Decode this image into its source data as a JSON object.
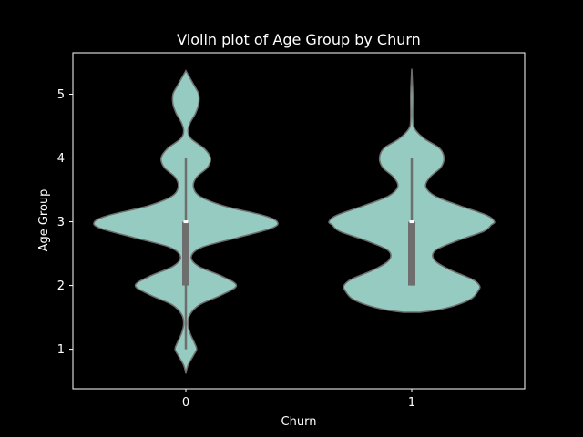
{
  "chart_data": {
    "type": "violin",
    "title": "Violin plot of Age Group by Churn",
    "xlabel": "Churn",
    "ylabel": "Age Group",
    "categories": [
      "0",
      "1"
    ],
    "ylim": [
      0.38,
      5.65
    ],
    "yticks": [
      1,
      2,
      3,
      4,
      5
    ],
    "grid": false,
    "colors": {
      "violin_fill": "#96CBC2",
      "violin_edge": "#6E6E6E",
      "box": "#6E6E6E",
      "median": "#FFFFFF",
      "background": "#000000",
      "axes": "#FFFFFF"
    },
    "violins": [
      {
        "category": "0",
        "box": {
          "whisker_low": 1,
          "q1": 2,
          "median": 3,
          "q3": 3,
          "whisker_high": 4
        },
        "profile": [
          [
            0.62,
            0.0
          ],
          [
            0.75,
            0.02
          ],
          [
            0.9,
            0.07
          ],
          [
            1.0,
            0.1
          ],
          [
            1.1,
            0.08
          ],
          [
            1.25,
            0.04
          ],
          [
            1.4,
            0.02
          ],
          [
            1.55,
            0.04
          ],
          [
            1.7,
            0.13
          ],
          [
            1.85,
            0.33
          ],
          [
            2.0,
            0.47
          ],
          [
            2.15,
            0.33
          ],
          [
            2.3,
            0.12
          ],
          [
            2.45,
            0.05
          ],
          [
            2.6,
            0.15
          ],
          [
            2.75,
            0.48
          ],
          [
            2.9,
            0.8
          ],
          [
            3.0,
            0.85
          ],
          [
            3.1,
            0.72
          ],
          [
            3.25,
            0.35
          ],
          [
            3.4,
            0.13
          ],
          [
            3.55,
            0.07
          ],
          [
            3.7,
            0.1
          ],
          [
            3.85,
            0.2
          ],
          [
            4.0,
            0.23
          ],
          [
            4.15,
            0.17
          ],
          [
            4.3,
            0.05
          ],
          [
            4.42,
            0.02
          ],
          [
            4.55,
            0.04
          ],
          [
            4.7,
            0.09
          ],
          [
            4.85,
            0.12
          ],
          [
            5.0,
            0.12
          ],
          [
            5.1,
            0.09
          ],
          [
            5.25,
            0.04
          ],
          [
            5.37,
            0.0
          ]
        ]
      },
      {
        "category": "1",
        "box": {
          "whisker_low": 2,
          "q1": 2,
          "median": 3,
          "q3": 3,
          "whisker_high": 4
        },
        "profile": [
          [
            1.58,
            0.08
          ],
          [
            1.62,
            0.25
          ],
          [
            1.7,
            0.43
          ],
          [
            1.8,
            0.56
          ],
          [
            1.92,
            0.62
          ],
          [
            2.0,
            0.63
          ],
          [
            2.1,
            0.56
          ],
          [
            2.25,
            0.35
          ],
          [
            2.4,
            0.21
          ],
          [
            2.55,
            0.22
          ],
          [
            2.7,
            0.42
          ],
          [
            2.85,
            0.67
          ],
          [
            2.95,
            0.74
          ],
          [
            3.0,
            0.77
          ],
          [
            3.1,
            0.7
          ],
          [
            3.25,
            0.45
          ],
          [
            3.4,
            0.22
          ],
          [
            3.55,
            0.13
          ],
          [
            3.7,
            0.17
          ],
          [
            3.85,
            0.27
          ],
          [
            4.0,
            0.3
          ],
          [
            4.15,
            0.26
          ],
          [
            4.3,
            0.12
          ],
          [
            4.45,
            0.03
          ],
          [
            4.6,
            0.01
          ],
          [
            5.0,
            0.01
          ],
          [
            5.4,
            0.0
          ]
        ]
      }
    ]
  }
}
